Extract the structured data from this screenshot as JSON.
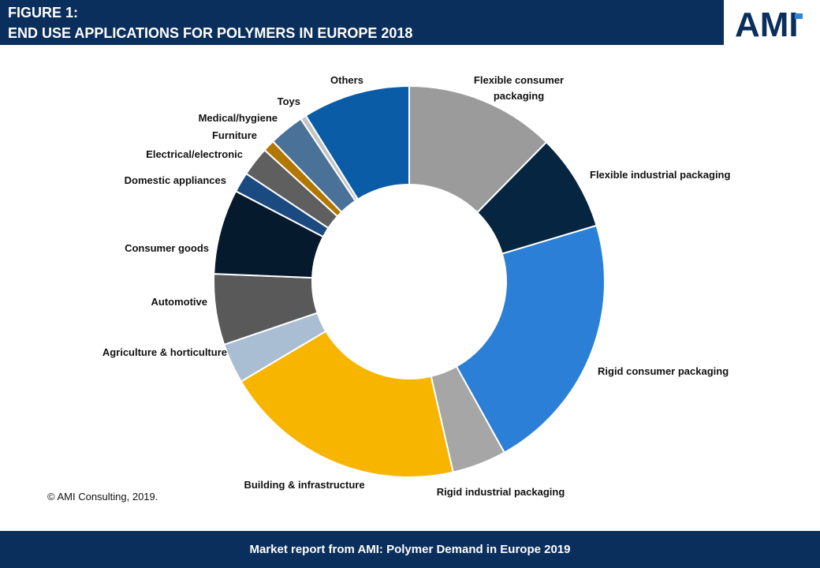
{
  "header": {
    "figure_label": "FIGURE 1:",
    "title": "END USE APPLICATIONS FOR POLYMERS IN EUROPE 2018"
  },
  "logo": {
    "text": "AMI"
  },
  "copyright": "© AMI Consulting, 2019.",
  "footer": {
    "text": "Market report from AMI: Polymer Demand in Europe 2019"
  },
  "colors": {
    "header_bg": "#0a2f5c",
    "logo_blue": "#0a2f5c",
    "logo_accent": "#2f86d6"
  },
  "chart_data": {
    "type": "pie",
    "donut": true,
    "legend": "none",
    "categories": [
      "Flexible consumer packaging",
      "Flexible industrial packaging",
      "Rigid consumer packaging",
      "Rigid industrial packaging",
      "Building & infrastructure",
      "Agriculture & horticulture",
      "Automotive",
      "Consumer goods",
      "Domestic appliances",
      "Electrical/electronic",
      "Furniture",
      "Medical/hygiene",
      "Toys",
      "Others"
    ],
    "label_lines": [
      [
        "Flexible consumer",
        "packaging"
      ],
      [
        "Flexible industrial packaging"
      ],
      [
        "Rigid consumer packaging"
      ],
      [
        "Rigid industrial packaging"
      ],
      [
        "Building & infrastructure"
      ],
      [
        "Agriculture & horticulture"
      ],
      [
        "Automotive"
      ],
      [
        "Consumer goods"
      ],
      [
        "Domestic appliances"
      ],
      [
        "Electrical/electronic"
      ],
      [
        "Furniture"
      ],
      [
        "Medical/hygiene"
      ],
      [
        "Toys"
      ],
      [
        "Others"
      ]
    ],
    "values": [
      12.7,
      8.2,
      22.1,
      4.6,
      20.6,
      3.4,
      6.0,
      7.2,
      1.7,
      2.5,
      1.0,
      3.0,
      0.5,
      9.1
    ],
    "colors": [
      "#9b9b9b",
      "#062540",
      "#2b7fd6",
      "#a6a6a6",
      "#f8b500",
      "#a9bdd3",
      "#595959",
      "#061a2d",
      "#1a4a80",
      "#5f5f5f",
      "#b27700",
      "#4a7299",
      "#c4c4c4",
      "#0a5ca6"
    ]
  }
}
